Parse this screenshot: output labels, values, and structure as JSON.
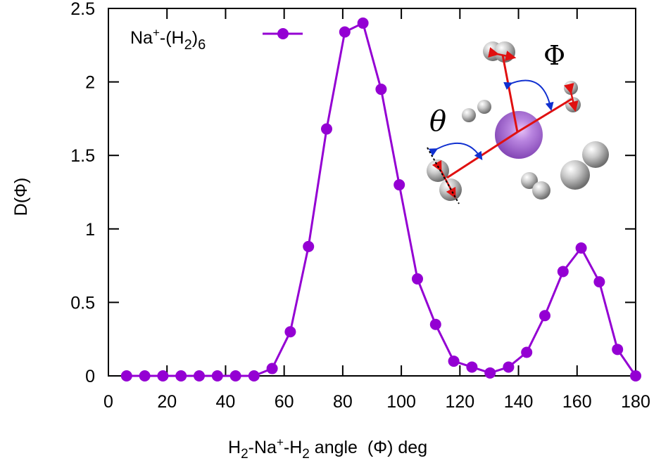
{
  "chart_data": {
    "type": "line",
    "title": "",
    "xlabel": "H2-Na+-H2 angle  (Φ) deg",
    "ylabel": "D(Φ)",
    "xlim": [
      0,
      180
    ],
    "ylim": [
      0,
      2.5
    ],
    "xticks": [
      0,
      20,
      40,
      60,
      80,
      100,
      120,
      140,
      160,
      180
    ],
    "yticks": [
      0,
      0.5,
      1,
      1.5,
      2,
      2.5
    ],
    "ytick_labels": [
      "0",
      "0.5",
      "1",
      "1.5",
      "2",
      "2.5"
    ],
    "grid": false,
    "legend_position": "top-left",
    "series": [
      {
        "name": "Na+-(H2)6",
        "color": "#9400D3",
        "marker": "circle",
        "x": [
          6.2,
          12.4,
          18.6,
          24.8,
          31.0,
          37.2,
          43.4,
          49.7,
          55.9,
          62.1,
          68.3,
          74.5,
          80.7,
          86.9,
          93.1,
          99.3,
          105.5,
          111.7,
          117.9,
          124.1,
          130.3,
          136.6,
          142.8,
          149.0,
          155.2,
          161.4,
          167.6,
          173.8,
          180.0
        ],
        "values": [
          0,
          0,
          0,
          0,
          0,
          0,
          0,
          0,
          0.05,
          0.3,
          0.88,
          1.68,
          2.34,
          2.4,
          1.95,
          1.3,
          0.66,
          0.35,
          0.1,
          0.06,
          0.02,
          0.06,
          0.16,
          0.41,
          0.71,
          0.87,
          0.64,
          0.18,
          0
        ]
      }
    ],
    "annotations": [
      {
        "type": "inset-image",
        "description": "Na+ ion (purple sphere) surrounded by six H2 molecules (gray sphere pairs) with red bond vectors and blue angle arcs",
        "labels": [
          "θ",
          "Φ"
        ]
      }
    ]
  },
  "legend": {
    "label_main": "Na",
    "label_sup": "+",
    "label_mid": "-(H",
    "label_sub1": "2",
    "label_close": ")",
    "label_sub2": "6"
  },
  "axes": {
    "ylabel_text": "D(Φ)",
    "xlabel_parts": {
      "h1": "H",
      "sub1": "2",
      "dash1": "-Na",
      "sup": "+",
      "dash2": "-H",
      "sub2": "2",
      "rest": " angle  (Φ) deg"
    }
  },
  "inset": {
    "theta_label": "θ",
    "phi_label": "Φ"
  }
}
